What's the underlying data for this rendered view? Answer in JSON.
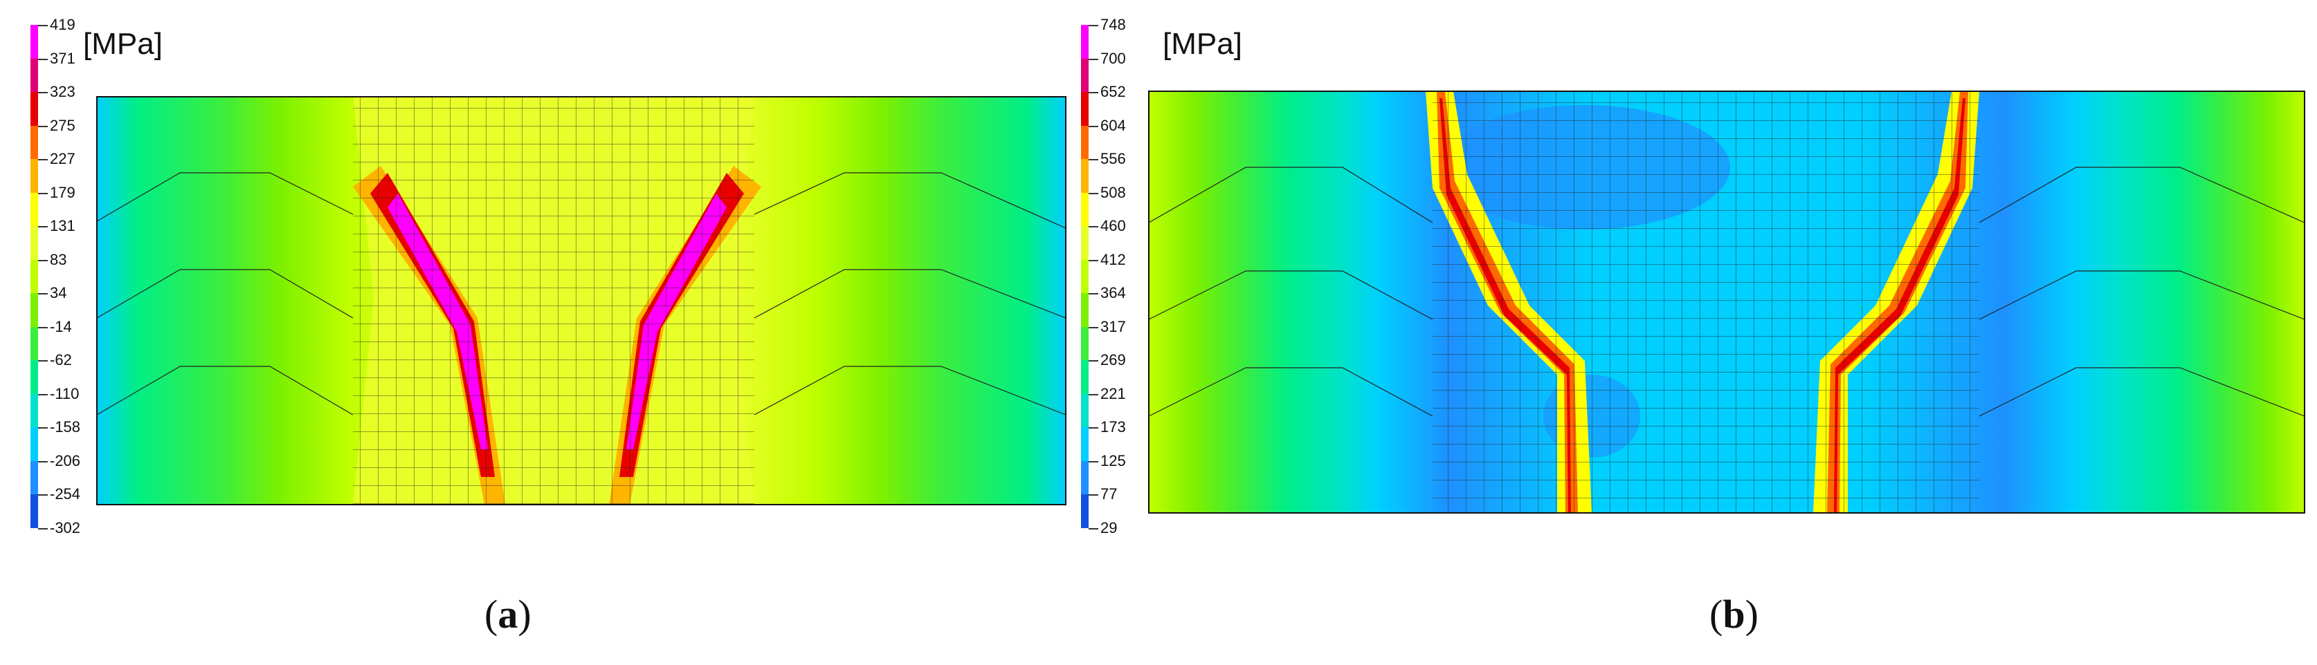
{
  "panel_a": {
    "unit": "[MPa]",
    "legend_values": [
      "419",
      "371",
      "323",
      "275",
      "227",
      "179",
      "131",
      "83",
      "34",
      "-14",
      "-62",
      "-110",
      "-158",
      "-206",
      "-254",
      "-302"
    ],
    "legend_colors": [
      "#ff00ff",
      "#dd0077",
      "#e80000",
      "#ff6a00",
      "#ffb400",
      "#ffff00",
      "#e9ff2a",
      "#c0ff00",
      "#7df000",
      "#3cee3c",
      "#00ee88",
      "#00e2cc",
      "#00cfff",
      "#1e90ff",
      "#1050e0",
      "#0000cc"
    ],
    "caption_letter": "a"
  },
  "panel_b": {
    "unit": "[MPa]",
    "legend_values": [
      "748",
      "700",
      "652",
      "604",
      "556",
      "508",
      "460",
      "412",
      "364",
      "317",
      "269",
      "221",
      "173",
      "125",
      "77",
      "29"
    ],
    "legend_colors": [
      "#ff00ff",
      "#dd0077",
      "#e80000",
      "#ff6a00",
      "#ffb400",
      "#ffff00",
      "#e9ff2a",
      "#c0ff00",
      "#7df000",
      "#3cee3c",
      "#00ee88",
      "#00e2cc",
      "#00cfff",
      "#1e90ff",
      "#1050e0",
      "#0000cc"
    ],
    "caption_letter": "b"
  }
}
